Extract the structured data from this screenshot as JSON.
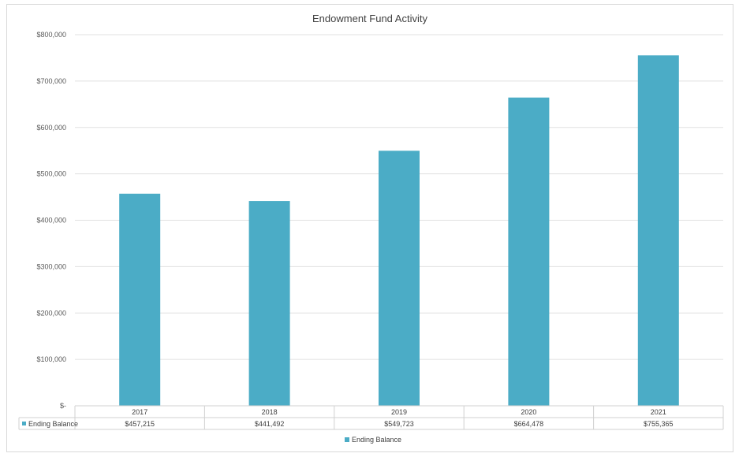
{
  "chart_data": {
    "type": "bar",
    "title": "Endowment Fund Activity",
    "xlabel": "",
    "ylabel": "",
    "categories": [
      "2017",
      "2018",
      "2019",
      "2020",
      "2021"
    ],
    "series": [
      {
        "name": "Ending Balance",
        "values": [
          457215,
          441492,
          549723,
          664478,
          755365
        ],
        "value_labels": [
          "$457,215",
          "$441,492",
          "$549,723",
          "$664,478",
          "$755,365"
        ],
        "color": "#4bacc6"
      }
    ],
    "ylim": [
      0,
      800000
    ],
    "y_ticks": [
      0,
      100000,
      200000,
      300000,
      400000,
      500000,
      600000,
      700000,
      800000
    ],
    "y_tick_labels": [
      "$-",
      "$100,000",
      "$200,000",
      "$300,000",
      "$400,000",
      "$500,000",
      "$600,000",
      "$700,000",
      "$800,000"
    ],
    "grid": true,
    "data_table": true,
    "legend_position": "bottom"
  }
}
